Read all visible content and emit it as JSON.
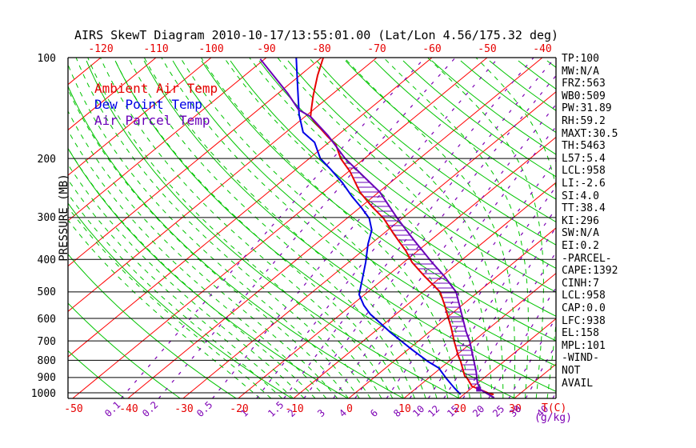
{
  "title": "AIRS SkewT Diagram 2010-10-17/13:55:01.00 (Lat/Lon 4.56/175.32 deg)",
  "legend": {
    "items": [
      {
        "label": "Ambient Air Temp",
        "color": "#e60000"
      },
      {
        "label": "Dew Point Temp",
        "color": "#0000e6"
      },
      {
        "label": "Air Parcel Temp",
        "color": "#6a00b8"
      }
    ]
  },
  "y_axis": {
    "label": "PRESSURE (MB)",
    "ticks": [
      100,
      200,
      300,
      400,
      500,
      600,
      700,
      800,
      900,
      1000
    ]
  },
  "x_axis": {
    "temp_unit_label": "T(C)",
    "mixing_unit_label": "(g/kg)",
    "top_ticks": [
      -120,
      -110,
      -100,
      -90,
      -80,
      -70,
      -60,
      -50,
      -40
    ],
    "bottom_ticks": [
      -50,
      -40,
      -30,
      -20,
      -10,
      0,
      10,
      20,
      30
    ],
    "mixing_ticks": [
      0.1,
      0.2,
      0.5,
      1,
      1.5,
      2,
      3,
      4,
      6,
      8,
      10,
      12,
      15,
      20,
      25,
      30,
      40
    ]
  },
  "side_panel": {
    "lines": [
      "TP:100",
      "MW:N/A",
      "FRZ:563",
      "WB0:509",
      "PW:31.89",
      "RH:59.2",
      "MAXT:30.5",
      "TH:5463",
      "L57:5.4",
      "LCL:958",
      "LI:-2.6",
      "SI:4.0",
      "TT:38.4",
      "KI:296",
      "SW:N/A",
      "EI:0.2",
      "-PARCEL-",
      "CAPE:1392",
      "CINH:7",
      "LCL:958",
      "CAP:0.0",
      "LFC:938",
      "EL:158",
      "MPL:101",
      "-WIND-",
      "NOT",
      "AVAIL"
    ]
  },
  "chart_data": {
    "type": "line",
    "subtype": "skewt-log-p",
    "title": "AIRS SkewT Diagram 2010-10-17/13:55:01.00 (Lat/Lon 4.56/175.32 deg)",
    "xlabel": "Temperature (C)",
    "ylabel": "PRESSURE (MB)",
    "pressure_range_mb": [
      100,
      1040
    ],
    "grid": {
      "pressure_lines_mb": [
        200,
        300,
        400,
        500,
        600,
        700,
        800,
        900,
        1000
      ],
      "isotherms_c": {
        "from": -160,
        "to": 40,
        "step": 10,
        "color": "#ff0000",
        "style": "solid"
      },
      "dry_adiabats_k": {
        "from": 230,
        "to": 450,
        "step": 10,
        "color": "#00c400",
        "style": "solid"
      },
      "moist_adiabats_c": {
        "from": -16,
        "to": 36,
        "step": 2,
        "color": "#00c400",
        "style": "dashed"
      },
      "mixing_ratio_gkg": {
        "values": [
          0.1,
          0.2,
          0.5,
          1,
          1.5,
          2,
          3,
          4,
          6,
          8,
          10,
          12,
          15,
          20,
          25,
          30,
          40
        ],
        "color": "#7d00b4",
        "style": "dashed"
      }
    },
    "series": [
      {
        "name": "Ambient Air Temp",
        "color": "#e60000",
        "width": 2,
        "points_p_t": [
          [
            100,
            -79.7
          ],
          [
            113,
            -76.8
          ],
          [
            130,
            -73.1
          ],
          [
            143,
            -70.4
          ],
          [
            150,
            -69.0
          ],
          [
            155,
            -67.3
          ],
          [
            172,
            -61.5
          ],
          [
            182,
            -58.2
          ],
          [
            200,
            -54.3
          ],
          [
            219,
            -49.7
          ],
          [
            252,
            -43.4
          ],
          [
            278,
            -38.1
          ],
          [
            302,
            -33.3
          ],
          [
            337,
            -27.9
          ],
          [
            376,
            -22.3
          ],
          [
            408,
            -18.5
          ],
          [
            448,
            -13.3
          ],
          [
            500,
            -6.9
          ],
          [
            543,
            -3.5
          ],
          [
            590,
            -0.2
          ],
          [
            641,
            3.1
          ],
          [
            703,
            6.6
          ],
          [
            776,
            10.5
          ],
          [
            807,
            12.2
          ],
          [
            891,
            16.1
          ],
          [
            906,
            17.1
          ],
          [
            957,
            19.7
          ],
          [
            978,
            21.9
          ],
          [
            1006,
            24.5
          ],
          [
            1011,
            25.4
          ]
        ]
      },
      {
        "name": "Dew Point Temp",
        "color": "#0000e6",
        "width": 2,
        "points_p_t": [
          [
            100,
            -84.6
          ],
          [
            123,
            -77.7
          ],
          [
            148,
            -71.5
          ],
          [
            167,
            -66.9
          ],
          [
            179,
            -62.6
          ],
          [
            200,
            -58.0
          ],
          [
            216,
            -53.6
          ],
          [
            236,
            -48.7
          ],
          [
            259,
            -44.0
          ],
          [
            281,
            -39.6
          ],
          [
            302,
            -35.9
          ],
          [
            327,
            -32.9
          ],
          [
            360,
            -30.5
          ],
          [
            408,
            -26.9
          ],
          [
            453,
            -24.1
          ],
          [
            509,
            -21.0
          ],
          [
            549,
            -17.7
          ],
          [
            583,
            -14.6
          ],
          [
            624,
            -10.4
          ],
          [
            659,
            -7.1
          ],
          [
            703,
            -2.9
          ],
          [
            743,
            0.7
          ],
          [
            807,
            6.3
          ],
          [
            843,
            9.6
          ],
          [
            906,
            13.3
          ],
          [
            968,
            16.9
          ],
          [
            1011,
            19.4
          ]
        ]
      },
      {
        "name": "Air Parcel Temp",
        "color": "#6a00b8",
        "width": 2,
        "points_p_t": [
          [
            101,
            -90.8
          ],
          [
            112,
            -85.3
          ],
          [
            128,
            -78.2
          ],
          [
            143,
            -72.7
          ],
          [
            150,
            -69.0
          ],
          [
            171,
            -61.6
          ],
          [
            200,
            -53.5
          ],
          [
            252,
            -39.8
          ],
          [
            302,
            -30.8
          ],
          [
            350,
            -23.1
          ],
          [
            408,
            -14.9
          ],
          [
            448,
            -9.7
          ],
          [
            500,
            -4.0
          ],
          [
            590,
            2.4
          ],
          [
            659,
            6.7
          ],
          [
            703,
            9.4
          ],
          [
            790,
            13.8
          ],
          [
            867,
            17.3
          ],
          [
            931,
            19.8
          ],
          [
            978,
            21.9
          ],
          [
            1034,
            26.2
          ]
        ]
      }
    ],
    "cape_hatch": {
      "between": [
        "Ambient Air Temp",
        "Air Parcel Temp"
      ],
      "color": "#6a00b8",
      "spacing_px": 6
    },
    "lcl_marker": {
      "p": 975,
      "t": 21.5,
      "color": "#6a00b8"
    }
  }
}
